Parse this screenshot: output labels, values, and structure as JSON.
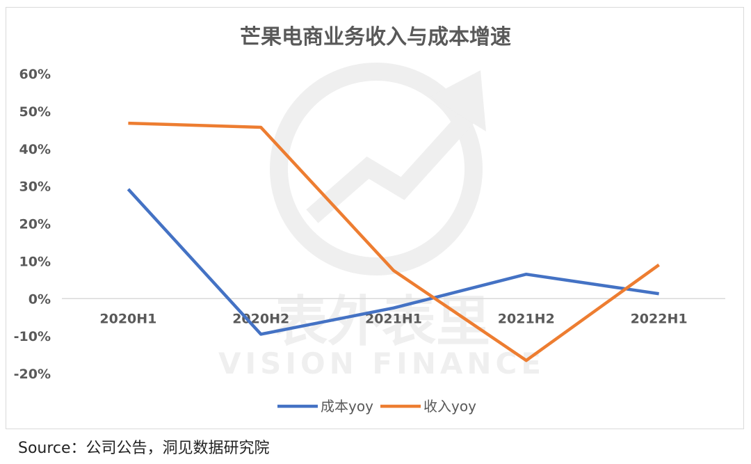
{
  "chart_data": {
    "type": "line",
    "title": "芒果电商业务收入与成本增速",
    "categories": [
      "2020H1",
      "2020H2",
      "2021H1",
      "2021H2",
      "2022H1"
    ],
    "series": [
      {
        "name": "成本yoy",
        "color": "#4472c4",
        "values": [
          29.2,
          -9.5,
          -2.5,
          6.5,
          1.3
        ]
      },
      {
        "name": "收入yoy",
        "color": "#ed7d31",
        "values": [
          46.8,
          45.7,
          7.5,
          -16.5,
          9.0
        ]
      }
    ],
    "yticks": [
      "60%",
      "50%",
      "40%",
      "30%",
      "20%",
      "10%",
      "0%",
      "-10%",
      "-20%"
    ],
    "ylim": [
      -20,
      60
    ],
    "grid": false,
    "legend_position": "bottom"
  },
  "watermark": {
    "cn": "表外表里",
    "en": "VISION FINANCE"
  },
  "source": "Source：公司公告，洞见数据研究院"
}
